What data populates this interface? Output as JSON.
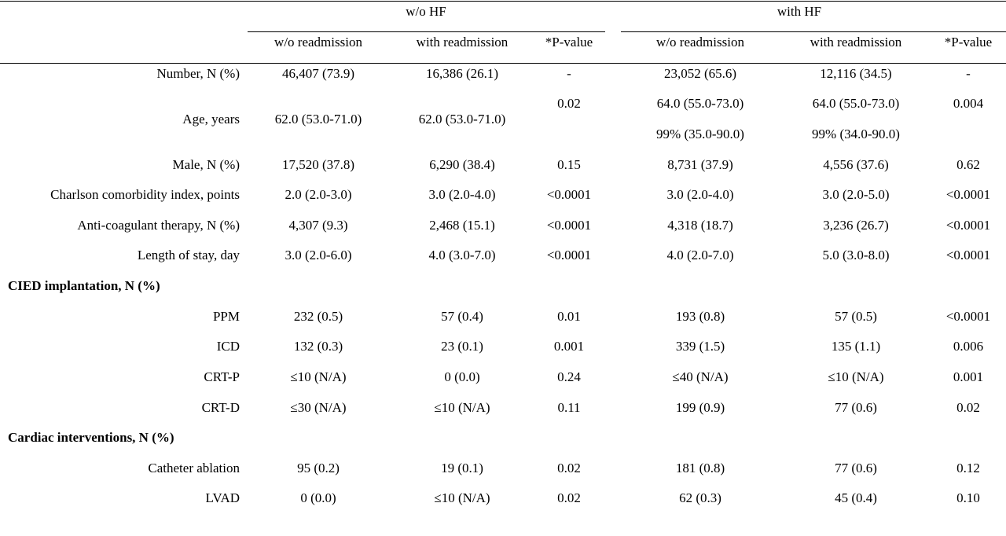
{
  "header": {
    "group_left": "w/o HF",
    "group_right": "with HF",
    "sub_left": [
      "w/o readmission",
      "with readmission",
      "*P-value"
    ],
    "sub_right": [
      "w/o readmission",
      "with readmission",
      "*P-value"
    ]
  },
  "rows": [
    {
      "label": "Number, N (%)",
      "cells": [
        "46,407 (73.9)",
        "16,386 (26.1)",
        "-",
        "23,052 (65.6)",
        "12,116 (34.5)",
        "-"
      ]
    },
    {
      "label": "Age, years",
      "cells": [
        "62.0 (53.0-71.0)",
        "62.0 (53.0-71.0)",
        "0.02",
        "64.0 (55.0-73.0)",
        "64.0 (55.0-73.0)",
        "0.004"
      ],
      "extra": [
        "99% (35.0-90.0)",
        "99% (34.0-90.0)"
      ]
    },
    {
      "label": "Male, N (%)",
      "cells": [
        "17,520 (37.8)",
        "6,290 (38.4)",
        "0.15",
        "8,731 (37.9)",
        "4,556 (37.6)",
        "0.62"
      ]
    },
    {
      "label": "Charlson comorbidity index, points",
      "cells": [
        "2.0 (2.0-3.0)",
        "3.0 (2.0-4.0)",
        "<0.0001",
        "3.0 (2.0-4.0)",
        "3.0 (2.0-5.0)",
        "<0.0001"
      ]
    },
    {
      "label": "Anti-coagulant therapy, N (%)",
      "cells": [
        "4,307 (9.3)",
        "2,468 (15.1)",
        "<0.0001",
        "4,318 (18.7)",
        "3,236 (26.7)",
        "<0.0001"
      ]
    },
    {
      "label": "Length of stay, day",
      "cells": [
        "3.0 (2.0-6.0)",
        "4.0 (3.0-7.0)",
        "<0.0001",
        "4.0 (2.0-7.0)",
        "5.0 (3.0-8.0)",
        "<0.0001"
      ]
    },
    {
      "section": "CIED implantation, N (%)"
    },
    {
      "label": "PPM",
      "cells": [
        "232 (0.5)",
        "57 (0.4)",
        "0.01",
        "193 (0.8)",
        "57 (0.5)",
        "<0.0001"
      ]
    },
    {
      "label": "ICD",
      "cells": [
        "132 (0.3)",
        "23 (0.1)",
        "0.001",
        "339 (1.5)",
        "135 (1.1)",
        "0.006"
      ]
    },
    {
      "label": "CRT-P",
      "cells": [
        "≤10 (N/A)",
        "0 (0.0)",
        "0.24",
        "≤40 (N/A)",
        "≤10 (N/A)",
        "0.001"
      ]
    },
    {
      "label": "CRT-D",
      "cells": [
        "≤30 (N/A)",
        "≤10 (N/A)",
        "0.11",
        "199 (0.9)",
        "77 (0.6)",
        "0.02"
      ]
    },
    {
      "section": "Cardiac interventions, N (%)"
    },
    {
      "label": "Catheter ablation",
      "cells": [
        "95 (0.2)",
        "19 (0.1)",
        "0.02",
        "181 (0.8)",
        "77 (0.6)",
        "0.12"
      ]
    },
    {
      "label": "LVAD",
      "cells": [
        "0 (0.0)",
        "≤10 (N/A)",
        "0.02",
        "62 (0.3)",
        "45 (0.4)",
        "0.10"
      ]
    }
  ]
}
